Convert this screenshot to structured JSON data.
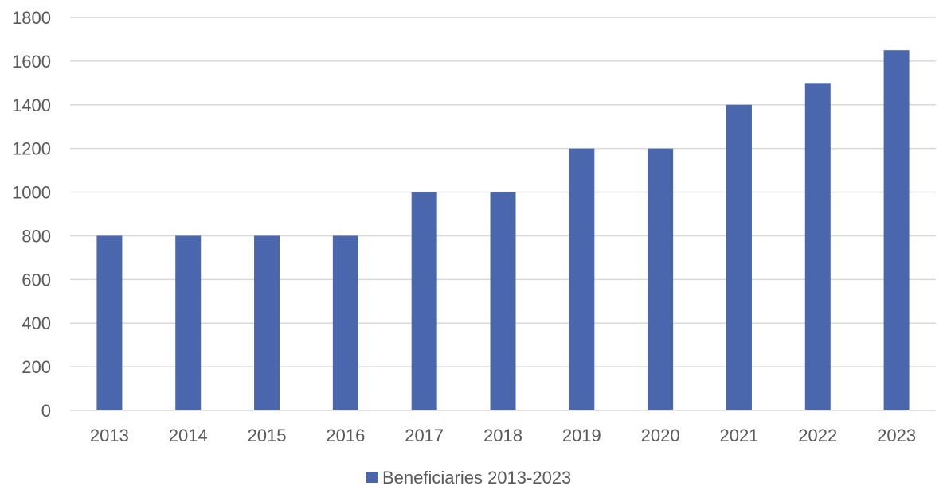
{
  "chart_data": {
    "type": "bar",
    "categories": [
      "2013",
      "2014",
      "2015",
      "2016",
      "2017",
      "2018",
      "2019",
      "2020",
      "2021",
      "2022",
      "2023"
    ],
    "series": [
      {
        "name": "Beneficiaries 2013-2023",
        "values": [
          800,
          800,
          800,
          800,
          1000,
          1000,
          1200,
          1200,
          1400,
          1500,
          1650
        ],
        "color": "#4a67ae"
      }
    ],
    "yticks": [
      "0",
      "200",
      "400",
      "600",
      "800",
      "1000",
      "1200",
      "1400",
      "1600",
      "1800"
    ],
    "ylim": [
      0,
      1800
    ],
    "grid": true,
    "legend_position": "bottom-center",
    "title": "",
    "xlabel": "",
    "ylabel": ""
  }
}
